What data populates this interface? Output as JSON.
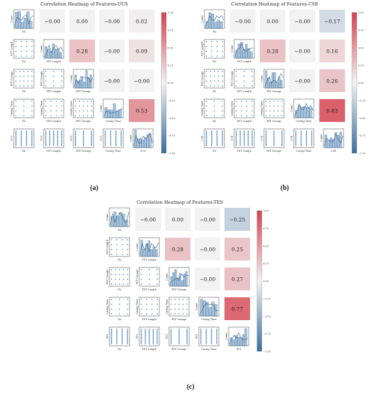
{
  "figure_captions": [
    "(a)",
    "(b)",
    "(c)"
  ],
  "chart_data": [
    {
      "type": "heatmap",
      "title": "Correlation Heatmap of Features-UCS",
      "features": [
        "FA",
        "PET Length",
        "PET Dosage",
        "Curing Time",
        "UCS"
      ],
      "lower_y_labels": [
        "UCS",
        "PET Length",
        "PET Dosage",
        "Curing Time",
        "UCS"
      ],
      "diag_label": "Count",
      "correlations": [
        {
          "row": 0,
          "col": 1,
          "value": -0.0,
          "label": "−0.00"
        },
        {
          "row": 0,
          "col": 2,
          "value": 0.0,
          "label": "0.00"
        },
        {
          "row": 0,
          "col": 3,
          "value": -0.0,
          "label": "−0.00"
        },
        {
          "row": 0,
          "col": 4,
          "value": 0.02,
          "label": "0.02"
        },
        {
          "row": 1,
          "col": 2,
          "value": 0.28,
          "label": "0.28"
        },
        {
          "row": 1,
          "col": 3,
          "value": -0.0,
          "label": "−0.00"
        },
        {
          "row": 1,
          "col": 4,
          "value": 0.09,
          "label": "0.09"
        },
        {
          "row": 2,
          "col": 3,
          "value": -0.0,
          "label": "−0.00"
        },
        {
          "row": 2,
          "col": 4,
          "value": -0.0,
          "label": "−0.00"
        },
        {
          "row": 3,
          "col": 4,
          "value": 0.53,
          "label": "0.53"
        }
      ],
      "colorbar": {
        "min": -1.0,
        "max": 1.0,
        "ticks": [
          "1.00",
          "0.75",
          "0.50",
          "0.25",
          "0.00",
          "−0.25",
          "−0.50",
          "−0.75",
          "−1.00"
        ]
      }
    },
    {
      "type": "heatmap",
      "title": "Correlation Heatmap of Features-CSE",
      "features": [
        "FA",
        "PET Length",
        "PET Dosage",
        "Curing Time",
        "CSE"
      ],
      "lower_y_labels": [
        "CSE",
        "PET Length",
        "PET Dosage",
        "Curing Time",
        "CSE"
      ],
      "diag_label": "Count",
      "correlations": [
        {
          "row": 0,
          "col": 1,
          "value": -0.0,
          "label": "−0.00"
        },
        {
          "row": 0,
          "col": 2,
          "value": 0.0,
          "label": "0.00"
        },
        {
          "row": 0,
          "col": 3,
          "value": -0.0,
          "label": "−0.00"
        },
        {
          "row": 0,
          "col": 4,
          "value": -0.17,
          "label": "−0.17"
        },
        {
          "row": 1,
          "col": 2,
          "value": 0.28,
          "label": "0.28"
        },
        {
          "row": 1,
          "col": 3,
          "value": -0.0,
          "label": "−0.00"
        },
        {
          "row": 1,
          "col": 4,
          "value": 0.16,
          "label": "0.16"
        },
        {
          "row": 2,
          "col": 3,
          "value": -0.0,
          "label": "−0.00"
        },
        {
          "row": 2,
          "col": 4,
          "value": 0.26,
          "label": "0.26"
        },
        {
          "row": 3,
          "col": 4,
          "value": 0.83,
          "label": "0.83"
        }
      ],
      "colorbar": {
        "min": -1.0,
        "max": 1.0,
        "ticks": [
          "1.00",
          "0.75",
          "0.50",
          "0.25",
          "0.00",
          "−0.25",
          "−0.50",
          "−0.75",
          "−1.00"
        ]
      }
    },
    {
      "type": "heatmap",
      "title": "Correlation Heatmap of Features-TES",
      "features": [
        "FA",
        "PET Length",
        "PET Dosage",
        "Curing Time",
        "TES"
      ],
      "lower_y_labels": [
        "TES",
        "PET Length",
        "PET Dosage",
        "Curing Time",
        "TES"
      ],
      "diag_label": "Count",
      "correlations": [
        {
          "row": 0,
          "col": 1,
          "value": -0.0,
          "label": "−0.00"
        },
        {
          "row": 0,
          "col": 2,
          "value": 0.0,
          "label": "0.00"
        },
        {
          "row": 0,
          "col": 3,
          "value": -0.0,
          "label": "−0.00"
        },
        {
          "row": 0,
          "col": 4,
          "value": -0.25,
          "label": "−0.25"
        },
        {
          "row": 1,
          "col": 2,
          "value": 0.28,
          "label": "0.28"
        },
        {
          "row": 1,
          "col": 3,
          "value": -0.0,
          "label": "−0.00"
        },
        {
          "row": 1,
          "col": 4,
          "value": 0.25,
          "label": "0.25"
        },
        {
          "row": 2,
          "col": 3,
          "value": -0.0,
          "label": "−0.00"
        },
        {
          "row": 2,
          "col": 4,
          "value": 0.27,
          "label": "0.27"
        },
        {
          "row": 3,
          "col": 4,
          "value": 0.77,
          "label": "0.77"
        }
      ],
      "colorbar": {
        "min": -1.0,
        "max": 1.0,
        "ticks": [
          "1.00",
          "0.75",
          "0.50",
          "0.25",
          "0.00",
          "−0.25",
          "−0.50",
          "−0.75",
          "−1.00"
        ]
      }
    }
  ],
  "colors": {
    "positive": "#d6424f",
    "neutral": "#f2f2f2",
    "negative": "#3a6fa0",
    "points": "#3a78b4",
    "bars": "#5b8fbf"
  }
}
